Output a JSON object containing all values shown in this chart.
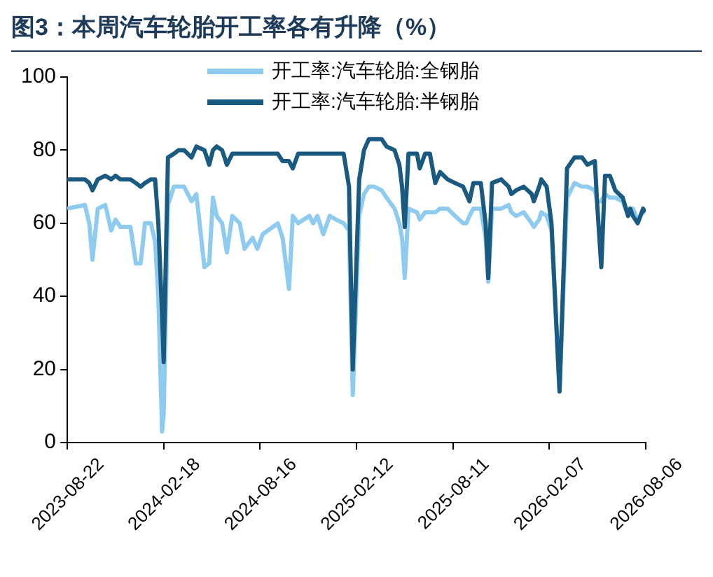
{
  "chart_data": {
    "type": "line",
    "title": "图3：本周汽车轮胎开工率各有升降（%）",
    "x": [
      "2023-08-22",
      "2023-09-24",
      "2023-10-02",
      "2023-10-08",
      "2023-10-18",
      "2023-11-01",
      "2023-11-12",
      "2023-11-20",
      "2023-11-29",
      "2023-12-18",
      "2023-12-28",
      "2024-01-06",
      "2024-01-14",
      "2024-01-25",
      "2024-02-02",
      "2024-02-08",
      "2024-02-15",
      "2024-02-18",
      "2024-02-26",
      "2024-03-08",
      "2024-03-17",
      "2024-03-27",
      "2024-04-10",
      "2024-04-19",
      "2024-05-04",
      "2024-05-13",
      "2024-05-20",
      "2024-05-27",
      "2024-06-06",
      "2024-06-15",
      "2024-06-25",
      "2024-07-09",
      "2024-07-18",
      "2024-08-02",
      "2024-08-11",
      "2024-08-21",
      "2024-09-09",
      "2024-09-18",
      "2024-09-27",
      "2024-10-09",
      "2024-10-16",
      "2024-10-26",
      "2024-11-16",
      "2024-11-23",
      "2024-12-01",
      "2024-12-12",
      "2024-12-24",
      "2025-01-05",
      "2025-01-19",
      "2025-01-29",
      "2025-02-05",
      "2025-02-17",
      "2025-02-26",
      "2025-03-07",
      "2025-03-17",
      "2025-03-31",
      "2025-04-09",
      "2025-04-24",
      "2025-05-03",
      "2025-05-08",
      "2025-05-13",
      "2025-05-20",
      "2025-06-05",
      "2025-06-10",
      "2025-06-20",
      "2025-06-29",
      "2025-07-09",
      "2025-07-18",
      "2025-08-01",
      "2025-08-15",
      "2025-08-30",
      "2025-09-05",
      "2025-09-11",
      "2025-09-18",
      "2025-10-02",
      "2025-10-11",
      "2025-10-16",
      "2025-10-23",
      "2025-11-09",
      "2025-11-23",
      "2025-11-28",
      "2025-12-07",
      "2025-12-21",
      "2026-01-05",
      "2026-01-09",
      "2026-01-19",
      "2026-01-23",
      "2026-02-02",
      "2026-02-11",
      "2026-02-26",
      "2026-03-12",
      "2026-03-26",
      "2026-04-09",
      "2026-04-19",
      "2026-05-03",
      "2026-05-07",
      "2026-05-15",
      "2026-05-22",
      "2026-05-31",
      "2026-06-10",
      "2026-06-24",
      "2026-07-04",
      "2026-07-08",
      "2026-07-13",
      "2026-07-22",
      "2026-08-01",
      "2026-08-05"
    ],
    "series": [
      {
        "name": "开工率:汽车轮胎:全钢胎",
        "color": "#8ecbef",
        "values": [
          64,
          65,
          60,
          50,
          64,
          65,
          58,
          61,
          59,
          59,
          49,
          49,
          60,
          60,
          55,
          40,
          3,
          8,
          65,
          70,
          70,
          70,
          66,
          68,
          48,
          49,
          67,
          62,
          60,
          52,
          62,
          60,
          53,
          56,
          53,
          57,
          59,
          60,
          56,
          42,
          62,
          60,
          62,
          60,
          62,
          57,
          62,
          61,
          60,
          58,
          13,
          62,
          68,
          70,
          70,
          69,
          67,
          64,
          60,
          56,
          45,
          64,
          63,
          61,
          63,
          63,
          63,
          64,
          64,
          62,
          60,
          60,
          62,
          64,
          64,
          56,
          44,
          64,
          64,
          65,
          63,
          62,
          63,
          60,
          59,
          61,
          63,
          62,
          58,
          14,
          67,
          71,
          70,
          70,
          69,
          66,
          66,
          68,
          67,
          67,
          66,
          62,
          63,
          64,
          61,
          63,
          63
        ]
      },
      {
        "name": "开工率:汽车轮胎:半钢胎",
        "color": "#1b5a80",
        "values": [
          72,
          72,
          71,
          69,
          72,
          73,
          72,
          73,
          72,
          72,
          71,
          70,
          71,
          72,
          72,
          60,
          35,
          22,
          78,
          79,
          80,
          80,
          78,
          81,
          80,
          76,
          80,
          81,
          80,
          76,
          79,
          79,
          79,
          79,
          79,
          79,
          79,
          79,
          77,
          77,
          75,
          79,
          79,
          79,
          79,
          79,
          79,
          79,
          79,
          70,
          20,
          72,
          80,
          83,
          83,
          83,
          81,
          80,
          76,
          70,
          59,
          79,
          79,
          75,
          79,
          79,
          71,
          74,
          72,
          71,
          70,
          68,
          66,
          71,
          71,
          60,
          45,
          71,
          72,
          70,
          68,
          69,
          70,
          68,
          66,
          70,
          72,
          70,
          60,
          14,
          75,
          78,
          78,
          76,
          77,
          66,
          48,
          73,
          73,
          69,
          67,
          62,
          64,
          62,
          60,
          64,
          63
        ]
      }
    ],
    "xlim": [
      "2023-08-22",
      "2026-08-06"
    ],
    "xticks": [
      "2023-08-22",
      "2024-02-18",
      "2024-08-16",
      "2025-02-12",
      "2025-08-11",
      "2026-02-07",
      "2026-08-06"
    ],
    "ylim": [
      0,
      100
    ],
    "yticks": [
      0,
      20,
      40,
      60,
      80,
      100
    ],
    "grid": false,
    "legend": "top",
    "marker": "none",
    "line_style": "solid"
  }
}
